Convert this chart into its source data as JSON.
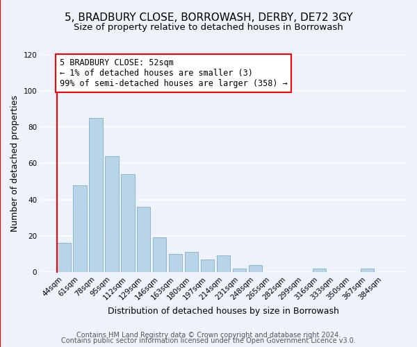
{
  "title": "5, BRADBURY CLOSE, BORROWASH, DERBY, DE72 3GY",
  "subtitle": "Size of property relative to detached houses in Borrowash",
  "xlabel": "Distribution of detached houses by size in Borrowash",
  "ylabel": "Number of detached properties",
  "bin_labels": [
    "44sqm",
    "61sqm",
    "78sqm",
    "95sqm",
    "112sqm",
    "129sqm",
    "146sqm",
    "163sqm",
    "180sqm",
    "197sqm",
    "214sqm",
    "231sqm",
    "248sqm",
    "265sqm",
    "282sqm",
    "299sqm",
    "316sqm",
    "333sqm",
    "350sqm",
    "367sqm",
    "384sqm"
  ],
  "bar_heights": [
    16,
    48,
    85,
    64,
    54,
    36,
    19,
    10,
    11,
    7,
    9,
    2,
    4,
    0,
    0,
    0,
    2,
    0,
    0,
    2,
    0
  ],
  "bar_color": "#b8d4e8",
  "bar_edge_color": "#8ab4d0",
  "red_line_bar_index": 0,
  "annotation_line1": "5 BRADBURY CLOSE: 52sqm",
  "annotation_line2": "← 1% of detached houses are smaller (3)",
  "annotation_line3": "99% of semi-detached houses are larger (358) →",
  "ylim": [
    0,
    120
  ],
  "yticks": [
    0,
    20,
    40,
    60,
    80,
    100,
    120
  ],
  "footer_line1": "Contains HM Land Registry data © Crown copyright and database right 2024.",
  "footer_line2": "Contains public sector information licensed under the Open Government Licence v3.0.",
  "background_color": "#eef2fb",
  "grid_color": "#ffffff",
  "title_fontsize": 11,
  "subtitle_fontsize": 9.5,
  "axis_label_fontsize": 9,
  "tick_fontsize": 7.5,
  "annotation_fontsize": 8.5,
  "footer_fontsize": 7
}
